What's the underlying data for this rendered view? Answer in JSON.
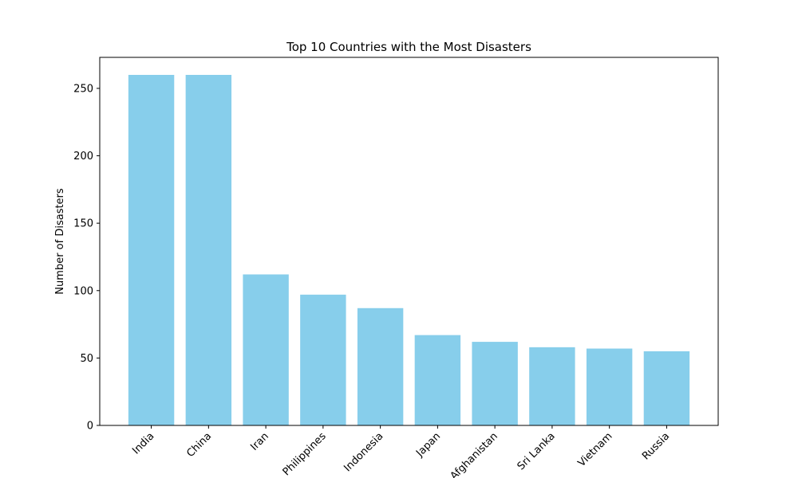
{
  "chart_data": {
    "type": "bar",
    "title": "Top 10 Countries with the Most Disasters",
    "xlabel": "",
    "ylabel": "Number of Disasters",
    "categories": [
      "India",
      "China",
      "Iran",
      "Philippines",
      "Indonesia",
      "Japan",
      "Afghanistan",
      "Sri Lanka",
      "Vietnam",
      "Russia"
    ],
    "values": [
      260,
      260,
      112,
      97,
      87,
      67,
      62,
      58,
      57,
      55
    ],
    "ylim": [
      0,
      273
    ],
    "yticks": [
      0,
      50,
      100,
      150,
      200,
      250
    ],
    "grid": false,
    "bar_color": "#87CEEB"
  }
}
